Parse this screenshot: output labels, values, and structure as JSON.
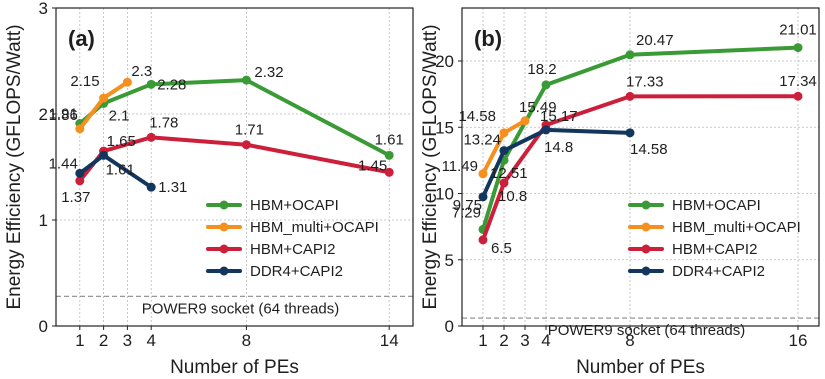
{
  "chart_data": [
    {
      "type": "line",
      "panel_label": "(a)",
      "xlabel": "Number of PEs",
      "ylabel": "Energy Efficiency (GFLOPS/Watt)",
      "xlim": [
        0,
        15
      ],
      "ylim": [
        0,
        3
      ],
      "xticks": [
        1,
        2,
        3,
        4,
        8,
        14
      ],
      "yticks": [
        0,
        1,
        2,
        3
      ],
      "grid": true,
      "legend_position": "bottom-right",
      "reference_line": {
        "value": 0.28,
        "label": "POWER9 socket (64 threads)",
        "style": "dashed"
      },
      "series": [
        {
          "name": "HBM+OCAPI",
          "color": "#3a9a35",
          "points": [
            {
              "x": 1,
              "y": 1.91,
              "label": "1.91"
            },
            {
              "x": 2,
              "y": 2.1,
              "label": "2.1"
            },
            {
              "x": 4,
              "y": 2.28,
              "label": "2.28"
            },
            {
              "x": 8,
              "y": 2.32,
              "label": "2.32"
            },
            {
              "x": 14,
              "y": 1.61,
              "label": "1.61"
            }
          ]
        },
        {
          "name": "HBM_multi+OCAPI",
          "color": "#f5901e",
          "points": [
            {
              "x": 1,
              "y": 1.86,
              "label": "1.86"
            },
            {
              "x": 2,
              "y": 2.15,
              "label": "2.15"
            },
            {
              "x": 3,
              "y": 2.3,
              "label": "2.3"
            }
          ]
        },
        {
          "name": "HBM+CAPI2",
          "color": "#cc1f3a",
          "points": [
            {
              "x": 1,
              "y": 1.37,
              "label": "1.37"
            },
            {
              "x": 2,
              "y": 1.65,
              "label": "1.65"
            },
            {
              "x": 4,
              "y": 1.78,
              "label": "1.78"
            },
            {
              "x": 8,
              "y": 1.71,
              "label": "1.71"
            },
            {
              "x": 14,
              "y": 1.45,
              "label": "1.45"
            }
          ]
        },
        {
          "name": "DDR4+CAPI2",
          "color": "#13365e",
          "points": [
            {
              "x": 1,
              "y": 1.44,
              "label": "1.44"
            },
            {
              "x": 2,
              "y": 1.61,
              "label": "1.61"
            },
            {
              "x": 4,
              "y": 1.31,
              "label": "1.31"
            }
          ]
        }
      ]
    },
    {
      "type": "line",
      "panel_label": "(b)",
      "xlabel": "Number of PEs",
      "ylabel": "Energy Efficiency (GFLOPS/Watt)",
      "xlim": [
        0,
        17
      ],
      "ylim": [
        0,
        24
      ],
      "xticks": [
        1,
        2,
        3,
        4,
        8,
        16
      ],
      "yticks": [
        0,
        5,
        10,
        15,
        20
      ],
      "grid": true,
      "legend_position": "bottom-right",
      "reference_line": {
        "value": 0.6,
        "label": "POWER9 socket (64 threads)",
        "style": "dashed"
      },
      "series": [
        {
          "name": "HBM+OCAPI",
          "color": "#3a9a35",
          "points": [
            {
              "x": 1,
              "y": 7.29,
              "label": "7.29"
            },
            {
              "x": 2,
              "y": 12.51,
              "label": "12.51"
            },
            {
              "x": 4,
              "y": 18.2,
              "label": "18.2"
            },
            {
              "x": 8,
              "y": 20.47,
              "label": "20.47"
            },
            {
              "x": 16,
              "y": 21.01,
              "label": "21.01"
            }
          ]
        },
        {
          "name": "HBM_multi+OCAPI",
          "color": "#f5901e",
          "points": [
            {
              "x": 1,
              "y": 11.49,
              "label": "11.49"
            },
            {
              "x": 2,
              "y": 14.58,
              "label": "14.58"
            },
            {
              "x": 3,
              "y": 15.49,
              "label": "15.49"
            }
          ]
        },
        {
          "name": "HBM+CAPI2",
          "color": "#cc1f3a",
          "points": [
            {
              "x": 1,
              "y": 6.5,
              "label": "6.5"
            },
            {
              "x": 2,
              "y": 10.8,
              "label": "10.8"
            },
            {
              "x": 4,
              "y": 15.17,
              "label": "15.17"
            },
            {
              "x": 8,
              "y": 17.33,
              "label": "17.33"
            },
            {
              "x": 16,
              "y": 17.34,
              "label": "17.34"
            }
          ]
        },
        {
          "name": "DDR4+CAPI2",
          "color": "#13365e",
          "points": [
            {
              "x": 1,
              "y": 9.75,
              "label": "9.75"
            },
            {
              "x": 2,
              "y": 13.24,
              "label": "13.24"
            },
            {
              "x": 4,
              "y": 14.8,
              "label": "14.8"
            },
            {
              "x": 8,
              "y": 14.58,
              "label": "14.58"
            }
          ]
        }
      ]
    }
  ]
}
